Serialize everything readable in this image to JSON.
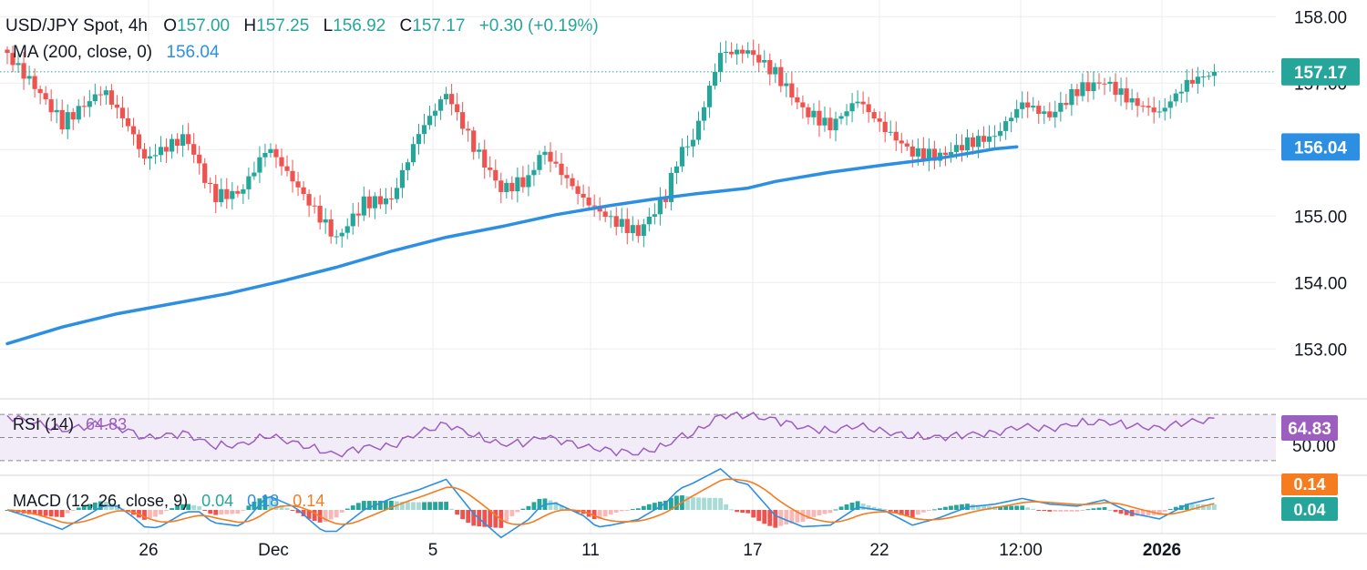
{
  "colors": {
    "up": "#26a69a",
    "down": "#ef5350",
    "ma": "#2d8fe2",
    "rsi": "#9c5fc0",
    "macd": "#2d8fe2",
    "signal": "#f57c1f",
    "hist_up": "#26a69a",
    "hist_up_light": "#a8dbd5",
    "hist_down": "#ef5350",
    "hist_down_light": "#f7b8b6",
    "rsi_badge": "#9c5fc0",
    "macd_badge": "#f57c1f"
  },
  "chart_data": {
    "type": "candlestick",
    "header": {
      "symbol": "USD/JPY Spot, 4h",
      "o_label": "O",
      "o_value": "157.00",
      "h_label": "H",
      "h_value": "157.25",
      "l_label": "L",
      "l_value": "156.92",
      "c_label": "C",
      "c_value": "157.17",
      "change": "+0.30 (+0.19%)",
      "ma_label": "MA (200, close, 0)",
      "ma_value": "156.04"
    },
    "price_axis": {
      "range": [
        152.25,
        158.25
      ],
      "ticks": [
        "158.00",
        "157.00",
        "156.00",
        "155.00",
        "154.00",
        "153.00"
      ],
      "tick_values": [
        158,
        157,
        156,
        155,
        154,
        153
      ],
      "last_price": 157.17,
      "last_price_label": "157.17",
      "ma_last": 156.04,
      "ma_last_label": "156.04"
    },
    "x_axis": {
      "labels": [
        "26",
        "Dec",
        "5",
        "11",
        "17",
        "22",
        "12:00",
        "2026"
      ],
      "bold": [
        false,
        false,
        false,
        false,
        false,
        false,
        false,
        true
      ]
    },
    "ma_200": [
      [
        0,
        153.08
      ],
      [
        40,
        153.33
      ],
      [
        80,
        153.53
      ],
      [
        120,
        153.68
      ],
      [
        160,
        153.83
      ],
      [
        200,
        154.02
      ],
      [
        240,
        154.23
      ],
      [
        280,
        154.47
      ],
      [
        320,
        154.68
      ],
      [
        360,
        154.84
      ],
      [
        400,
        155.02
      ],
      [
        440,
        155.16
      ],
      [
        470,
        155.25
      ],
      [
        500,
        155.33
      ],
      [
        540,
        155.42
      ],
      [
        560,
        155.52
      ],
      [
        600,
        155.66
      ],
      [
        640,
        155.77
      ],
      [
        680,
        155.87
      ],
      [
        700,
        155.94
      ],
      [
        720,
        156.01
      ],
      [
        736,
        156.04
      ]
    ],
    "key_candles": [
      [
        0,
        157.42
      ],
      [
        20,
        156.95
      ],
      [
        40,
        156.4
      ],
      [
        70,
        156.9
      ],
      [
        90,
        156.3
      ],
      [
        100,
        155.85
      ],
      [
        130,
        156.2
      ],
      [
        150,
        155.3
      ],
      [
        170,
        155.35
      ],
      [
        190,
        156.05
      ],
      [
        220,
        155.2
      ],
      [
        240,
        154.65
      ],
      [
        260,
        155.2
      ],
      [
        280,
        155.25
      ],
      [
        300,
        156.25
      ],
      [
        320,
        156.85
      ],
      [
        340,
        156.05
      ],
      [
        360,
        155.4
      ],
      [
        380,
        155.55
      ],
      [
        390,
        156.0
      ],
      [
        420,
        155.25
      ],
      [
        440,
        154.95
      ],
      [
        460,
        154.75
      ],
      [
        480,
        155.3
      ],
      [
        490,
        155.95
      ],
      [
        500,
        156.15
      ],
      [
        520,
        157.45
      ],
      [
        540,
        157.48
      ],
      [
        560,
        157.15
      ],
      [
        580,
        156.6
      ],
      [
        600,
        156.35
      ],
      [
        620,
        156.75
      ],
      [
        640,
        156.3
      ],
      [
        660,
        155.95
      ],
      [
        680,
        155.9
      ],
      [
        700,
        156.1
      ],
      [
        720,
        156.2
      ],
      [
        740,
        156.7
      ],
      [
        760,
        156.5
      ],
      [
        780,
        156.9
      ],
      [
        800,
        157.02
      ],
      [
        820,
        156.72
      ],
      [
        840,
        156.55
      ],
      [
        860,
        157.0
      ],
      [
        880,
        157.17
      ]
    ],
    "rsi": {
      "label": "RSI (14)",
      "value": 64.83,
      "value_label": "64.83",
      "tick_label": "50.00",
      "upper": 70,
      "lower": 30,
      "range": [
        22,
        78
      ]
    },
    "macd": {
      "label": "MACD (12, 26, close, 9)",
      "macd_value": "0.04",
      "signal_value": "0.18",
      "hist_value": "0.14",
      "badge_top": "0.14",
      "badge_bottom": "0.04"
    }
  }
}
